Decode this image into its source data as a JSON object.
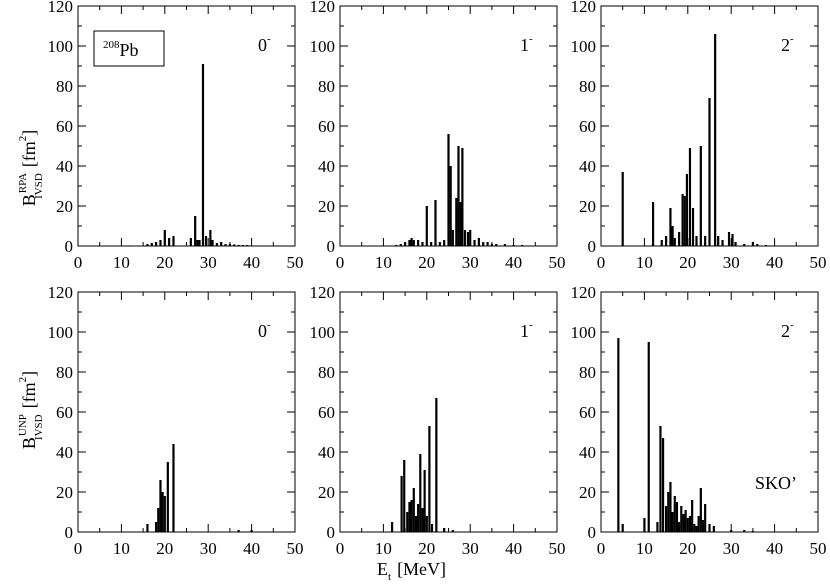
{
  "nucleus_label": {
    "mass": "208",
    "symbol": "Pb"
  },
  "model_label": "SKO’",
  "y_axis_labels": [
    {
      "base": "B",
      "sup": "RPA",
      "sub": "IVSD",
      "unit": "[fm",
      "unit_sup": "2",
      "unit_close": "]"
    },
    {
      "base": "B",
      "sup": "UNP",
      "sub": "IVSD",
      "unit": "[fm",
      "unit_sup": "2",
      "unit_close": "]"
    }
  ],
  "x_axis_label": {
    "base": "E",
    "sub": "t",
    "unit": "[MeV]"
  },
  "chart_data": [
    {
      "type": "bar",
      "row": "RPA",
      "multipolarity": {
        "l": "0",
        "sup": "-"
      },
      "xlim": [
        0,
        50
      ],
      "ylim": [
        0,
        120
      ],
      "x_ticks": [
        0,
        10,
        20,
        30,
        40,
        50
      ],
      "y_ticks": [
        0,
        20,
        40,
        60,
        80,
        100,
        120
      ],
      "x": [
        12,
        16,
        17,
        18,
        19,
        20,
        21,
        22,
        26,
        27,
        27.5,
        28,
        28.8,
        29.5,
        30.5,
        31,
        32,
        33,
        34,
        35,
        36,
        37,
        38,
        39,
        40
      ],
      "y": [
        0.3,
        1,
        1.5,
        2,
        3,
        8,
        4,
        5,
        4,
        15,
        3,
        3,
        91,
        5,
        8,
        3,
        1.5,
        2,
        1,
        1,
        0.8,
        0.5,
        0.5,
        0.5,
        0.3
      ]
    },
    {
      "type": "bar",
      "row": "RPA",
      "multipolarity": {
        "l": "1",
        "sup": "-"
      },
      "xlim": [
        0,
        50
      ],
      "ylim": [
        0,
        120
      ],
      "x_ticks": [
        0,
        10,
        20,
        30,
        40,
        50
      ],
      "y_ticks": [
        0,
        20,
        40,
        60,
        80,
        100,
        120
      ],
      "x": [
        13,
        14,
        15,
        16,
        16.5,
        17,
        18,
        19,
        20,
        21,
        22,
        23,
        24,
        25,
        25.5,
        26,
        26.8,
        27.3,
        27.8,
        28.2,
        28.8,
        29.5,
        30,
        31,
        32,
        33,
        34,
        35,
        36,
        38,
        40,
        42
      ],
      "y": [
        0.5,
        1,
        2,
        3,
        4,
        3,
        3,
        2,
        20,
        2,
        23,
        2,
        3,
        56,
        40,
        8,
        24,
        50,
        22,
        49,
        8,
        7,
        8,
        3,
        4,
        2,
        2,
        1,
        1,
        1,
        0.5,
        0.5
      ]
    },
    {
      "type": "bar",
      "row": "RPA",
      "multipolarity": {
        "l": "2",
        "sup": "-"
      },
      "xlim": [
        0,
        50
      ],
      "ylim": [
        0,
        120
      ],
      "x_ticks": [
        0,
        10,
        20,
        30,
        40,
        50
      ],
      "y_ticks": [
        0,
        20,
        40,
        60,
        80,
        100,
        120
      ],
      "x": [
        5,
        12,
        14,
        15,
        16,
        16.5,
        17,
        18,
        18.8,
        19.3,
        19.8,
        20.5,
        21.2,
        22,
        23,
        24,
        25,
        26.3,
        27,
        28,
        29.5,
        30.3,
        31,
        33,
        35,
        36,
        38
      ],
      "y": [
        37,
        22,
        3,
        5,
        19,
        10,
        4,
        7,
        26,
        25,
        36,
        49,
        19,
        5,
        50,
        5,
        74,
        106,
        5,
        3,
        7,
        6,
        2,
        1,
        2,
        1,
        0.5
      ]
    },
    {
      "type": "bar",
      "row": "UNP",
      "multipolarity": {
        "l": "0",
        "sup": "-"
      },
      "xlim": [
        0,
        50
      ],
      "ylim": [
        0,
        120
      ],
      "x_ticks": [
        0,
        10,
        20,
        30,
        40,
        50
      ],
      "y_ticks": [
        0,
        20,
        40,
        60,
        80,
        100,
        120
      ],
      "x": [
        16,
        18,
        18.5,
        19,
        19.5,
        20,
        20.7,
        22,
        37,
        40
      ],
      "y": [
        4,
        5,
        12,
        26,
        20,
        18,
        35,
        44,
        1,
        1
      ]
    },
    {
      "type": "bar",
      "row": "UNP",
      "multipolarity": {
        "l": "1",
        "sup": "-"
      },
      "xlim": [
        0,
        50
      ],
      "ylim": [
        0,
        120
      ],
      "x_ticks": [
        0,
        10,
        20,
        30,
        40,
        50
      ],
      "y_ticks": [
        0,
        20,
        40,
        60,
        80,
        100,
        120
      ],
      "x": [
        12,
        14.2,
        14.8,
        15.5,
        16,
        16.5,
        17,
        17.5,
        18,
        18.5,
        19,
        19.5,
        20,
        20.6,
        21.2,
        22.2,
        24,
        26
      ],
      "y": [
        5,
        28,
        36,
        10,
        15,
        16,
        22,
        8,
        14,
        39,
        12,
        31,
        8,
        53,
        4,
        67,
        2,
        1
      ]
    },
    {
      "type": "bar",
      "row": "UNP",
      "multipolarity": {
        "l": "2",
        "sup": "-"
      },
      "xlim": [
        0,
        50
      ],
      "ylim": [
        0,
        120
      ],
      "x_ticks": [
        0,
        10,
        20,
        30,
        40,
        50
      ],
      "y_ticks": [
        0,
        20,
        40,
        60,
        80,
        100,
        120
      ],
      "x": [
        4,
        5,
        10,
        11,
        13,
        13.7,
        14.3,
        15,
        15.5,
        16,
        16.5,
        17,
        17.5,
        18,
        18.5,
        19,
        19.5,
        20,
        20.5,
        21,
        21.5,
        22,
        22.5,
        23,
        23.5,
        24,
        25,
        26,
        30,
        33,
        35
      ],
      "y": [
        97,
        4,
        7,
        95,
        5,
        53,
        47,
        13,
        20,
        25,
        10,
        18,
        15,
        5,
        13,
        9,
        11,
        7,
        8,
        16,
        4,
        3,
        8,
        22,
        6,
        14,
        4,
        3,
        1,
        1,
        0.5
      ]
    }
  ]
}
